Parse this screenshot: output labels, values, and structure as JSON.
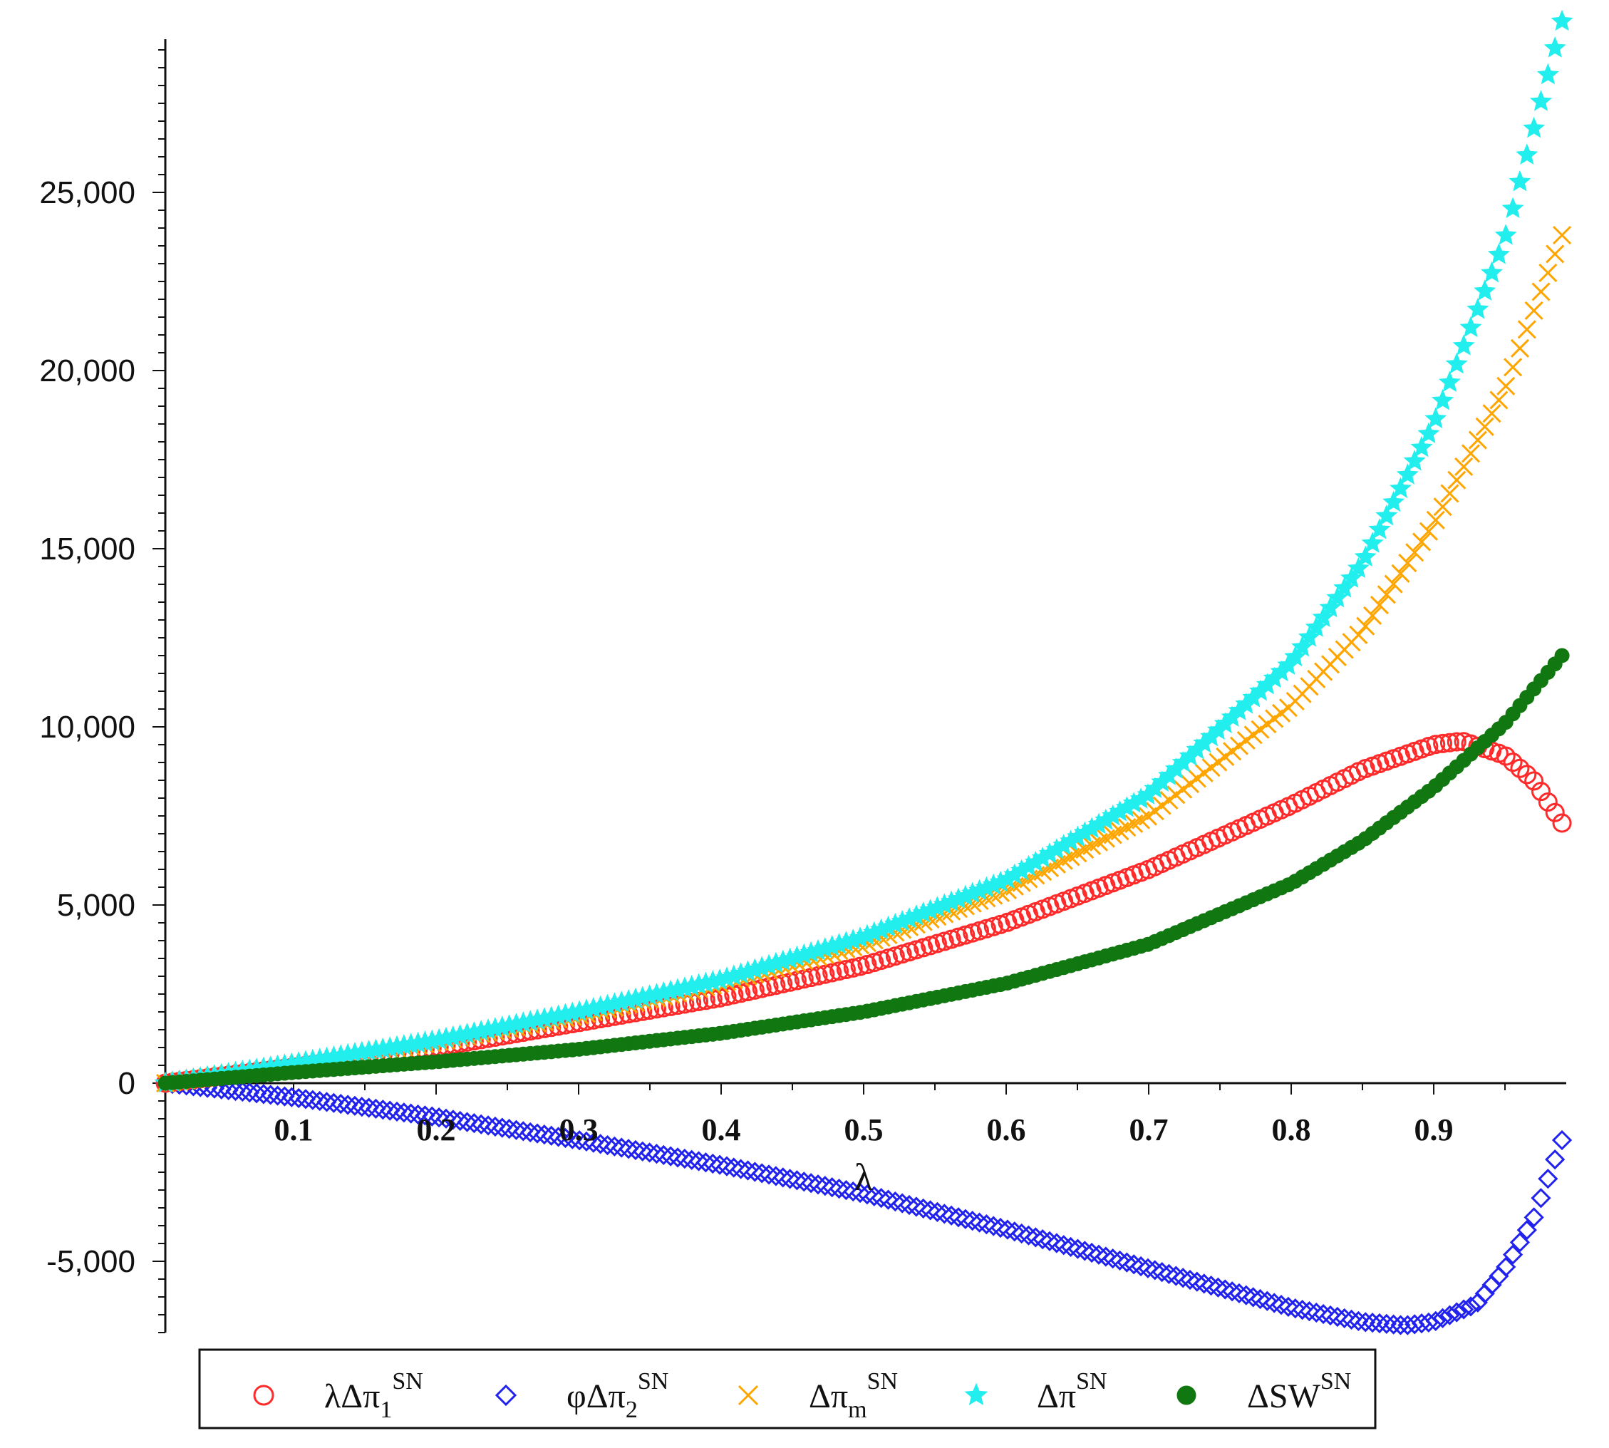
{
  "chart_data": {
    "type": "scatter",
    "title": "",
    "xlabel": "λ",
    "ylabel": "",
    "xlim": [
      0.01,
      0.99
    ],
    "ylim": [
      -7000,
      30000
    ],
    "x_ticks": [
      "0.1",
      "0.2",
      "0.3",
      "0.4",
      "0.5",
      "0.6",
      "0.7",
      "0.8",
      "0.9"
    ],
    "y_ticks": [
      "-5,000",
      "0",
      "5,000",
      "10,000",
      "15,000",
      "20,000",
      "25,000"
    ],
    "legend_position": "bottom",
    "series": [
      {
        "name": "λΔπ1SN",
        "label_base": "λΔπ",
        "label_sub": "1",
        "label_sup": "SN",
        "marker": "circle-open",
        "color": "#ff2a2a",
        "x": [
          0.01,
          0.1,
          0.2,
          0.3,
          0.4,
          0.5,
          0.6,
          0.7,
          0.8,
          0.85,
          0.9,
          0.92,
          0.95,
          0.97,
          0.99
        ],
        "y": [
          0,
          450,
          1000,
          1700,
          2400,
          3300,
          4500,
          6000,
          7800,
          8800,
          9500,
          9600,
          9200,
          8500,
          7300
        ]
      },
      {
        "name": "φΔπ2SN",
        "label_base": "φΔπ",
        "label_sub": "2",
        "label_sup": "SN",
        "marker": "diamond-open",
        "color": "#2222ee",
        "x": [
          0.01,
          0.1,
          0.2,
          0.3,
          0.4,
          0.5,
          0.6,
          0.7,
          0.8,
          0.85,
          0.88,
          0.9,
          0.93,
          0.95,
          0.97,
          0.99
        ],
        "y": [
          0,
          -400,
          -950,
          -1600,
          -2300,
          -3100,
          -4100,
          -5200,
          -6300,
          -6700,
          -6800,
          -6700,
          -6200,
          -5200,
          -3800,
          -1600
        ]
      },
      {
        "name": "ΔπmSN",
        "label_base": "Δπ",
        "label_sub": "m",
        "label_sup": "SN",
        "marker": "x",
        "color": "#ffa500",
        "x": [
          0.01,
          0.1,
          0.2,
          0.3,
          0.4,
          0.5,
          0.6,
          0.7,
          0.8,
          0.85,
          0.9,
          0.95,
          0.99
        ],
        "y": [
          0,
          500,
          1150,
          1900,
          2800,
          3900,
          5400,
          7500,
          10600,
          12700,
          15700,
          19500,
          23800
        ]
      },
      {
        "name": "ΔπSN",
        "label_base": "Δπ",
        "label_sub": "",
        "label_sup": "SN",
        "marker": "star",
        "color": "#22eeee",
        "x": [
          0.01,
          0.1,
          0.2,
          0.3,
          0.4,
          0.5,
          0.6,
          0.7,
          0.8,
          0.85,
          0.9,
          0.95,
          0.99
        ],
        "y": [
          0,
          550,
          1200,
          2000,
          2900,
          4100,
          5700,
          8100,
          11800,
          14600,
          18500,
          23700,
          29800
        ]
      },
      {
        "name": "ΔSWSN",
        "label_base": "ΔSW",
        "label_sub": "",
        "label_sup": "SN",
        "marker": "circle-filled",
        "color": "#117711",
        "x": [
          0.01,
          0.1,
          0.2,
          0.3,
          0.4,
          0.5,
          0.6,
          0.7,
          0.8,
          0.85,
          0.9,
          0.95,
          0.99
        ],
        "y": [
          0,
          300,
          600,
          950,
          1400,
          2000,
          2800,
          3900,
          5600,
          6800,
          8300,
          10100,
          12000
        ]
      }
    ]
  }
}
